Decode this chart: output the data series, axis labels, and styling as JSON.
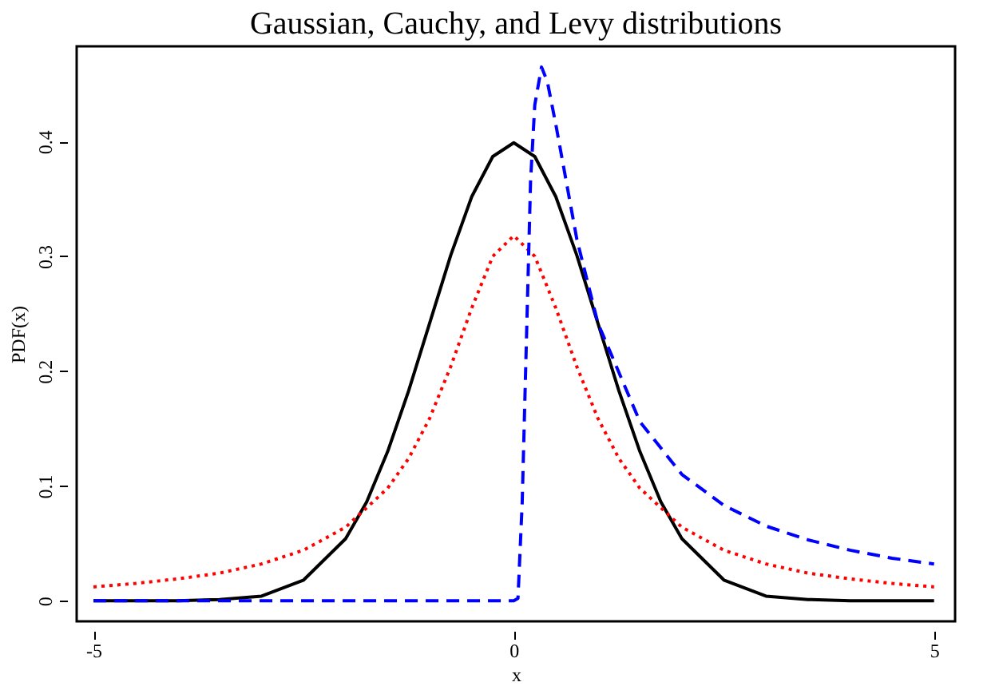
{
  "chart_data": {
    "type": "line",
    "title": "Gaussian, Cauchy, and Levy distributions",
    "xlabel": "x",
    "ylabel": "PDF(x)",
    "xlim": [
      -5.2,
      5.25
    ],
    "ylim": [
      -0.018,
      0.483
    ],
    "xticks": [
      -5,
      0,
      5
    ],
    "yticks": [
      0,
      0.1,
      0.2,
      0.3,
      0.4
    ],
    "grid": false,
    "series": [
      {
        "color": "#000000",
        "line_style": "solid",
        "x": [
          -5,
          -4.5,
          -4,
          -3.5,
          -3,
          -2.5,
          -2,
          -1.75,
          -1.5,
          -1.25,
          -1,
          -0.75,
          -0.5,
          -0.25,
          0,
          0.25,
          0.5,
          0.75,
          1,
          1.25,
          1.5,
          1.75,
          2,
          2.5,
          3,
          3.5,
          4,
          4.5,
          5
        ],
        "values": [
          0,
          0,
          0,
          0.001,
          0.004,
          0.018,
          0.054,
          0.086,
          0.13,
          0.183,
          0.242,
          0.301,
          0.352,
          0.387,
          0.399,
          0.387,
          0.352,
          0.301,
          0.242,
          0.183,
          0.13,
          0.086,
          0.054,
          0.018,
          0.004,
          0.001,
          0,
          0,
          0
        ]
      },
      {
        "color": "#ff0000",
        "line_style": "dotted",
        "x": [
          -5,
          -4.5,
          -4,
          -3.5,
          -3,
          -2.5,
          -2,
          -1.5,
          -1.25,
          -1,
          -0.75,
          -0.5,
          -0.25,
          0,
          0.25,
          0.5,
          0.75,
          1,
          1.25,
          1.5,
          2,
          2.5,
          3,
          3.5,
          4,
          4.5,
          5
        ],
        "values": [
          0.012,
          0.015,
          0.019,
          0.024,
          0.032,
          0.044,
          0.064,
          0.098,
          0.124,
          0.159,
          0.204,
          0.255,
          0.3,
          0.318,
          0.3,
          0.255,
          0.204,
          0.159,
          0.124,
          0.098,
          0.064,
          0.044,
          0.032,
          0.024,
          0.019,
          0.015,
          0.012
        ]
      },
      {
        "color": "#0000ff",
        "line_style": "dashed",
        "x": [
          -5,
          0,
          0.05,
          0.1,
          0.2,
          0.25,
          0.33,
          0.4,
          0.5,
          0.75,
          1,
          1.5,
          2,
          2.5,
          3,
          3.5,
          4,
          4.5,
          5
        ],
        "values": [
          0,
          0,
          0.002,
          0.085,
          0.366,
          0.432,
          0.465,
          0.452,
          0.415,
          0.315,
          0.242,
          0.156,
          0.11,
          0.083,
          0.065,
          0.053,
          0.044,
          0.037,
          0.032
        ]
      }
    ]
  }
}
